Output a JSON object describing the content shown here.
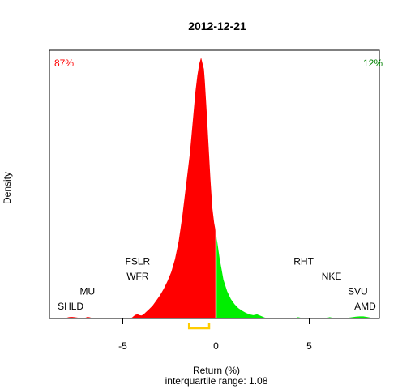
{
  "chart_data": {
    "type": "area",
    "title": "2012-12-21",
    "xlabel": "Return (%)",
    "ylabel": "Density",
    "subtitle": "interquartile range: 1.08",
    "xlim": [
      -9.3,
      9.3
    ],
    "x_ticks": [
      -5,
      0,
      5
    ],
    "x_tick_labels": [
      "-5",
      "0",
      "5"
    ],
    "pct_negative": "87%",
    "pct_positive": "12%",
    "colors": {
      "negative": "#ff0000",
      "positive": "#00ee00",
      "iqr": "#ffcc00",
      "zero_line": "#ffffff",
      "baseline": "#bebebe"
    },
    "density": {
      "x": [
        -8.4,
        -8.2,
        -8.0,
        -7.9,
        -7.8,
        -7.7,
        -7.6,
        -7.4,
        -7.2,
        -7.0,
        -6.9,
        -6.8,
        -6.7,
        -6.6,
        -6.4,
        -6.2,
        -5.5,
        -5.0,
        -4.6,
        -4.5,
        -4.4,
        -4.3,
        -4.2,
        -4.1,
        -4.0,
        -3.9,
        -3.8,
        -3.6,
        -3.4,
        -3.2,
        -3.0,
        -2.8,
        -2.6,
        -2.4,
        -2.2,
        -2.0,
        -1.8,
        -1.6,
        -1.4,
        -1.3,
        -1.2,
        -1.1,
        -1.0,
        -0.9,
        -0.8,
        -0.7,
        -0.65,
        -0.6,
        -0.5,
        -0.4,
        -0.3,
        -0.2,
        -0.1,
        0.0,
        0.1,
        0.2,
        0.3,
        0.4,
        0.6,
        0.8,
        1.0,
        1.2,
        1.4,
        1.6,
        1.8,
        2.0,
        2.2,
        2.4,
        2.6,
        2.8,
        3.0,
        3.5,
        4.0,
        4.2,
        4.4,
        4.6,
        4.8,
        5.0,
        5.5,
        5.9,
        6.1,
        6.3,
        6.5,
        6.8,
        7.2,
        7.5,
        7.7,
        7.9,
        8.1,
        8.3,
        8.6,
        9.3
      ],
      "y": [
        0,
        0.1,
        0.3,
        0.5,
        0.6,
        0.6,
        0.5,
        0.3,
        0.2,
        0.3,
        0.6,
        0.5,
        0.3,
        0.1,
        0,
        0,
        0,
        0,
        0.1,
        0.4,
        1.0,
        1.5,
        1.6,
        1.3,
        1.2,
        1.5,
        2.2,
        3.5,
        5.0,
        7.0,
        9.0,
        11.5,
        14.5,
        18.0,
        23.0,
        30.0,
        40.0,
        52.0,
        64.0,
        72.0,
        80.0,
        88.0,
        94.0,
        98.5,
        101.0,
        98.0,
        96.5,
        92.0,
        80.0,
        67.0,
        54.0,
        43.0,
        37.0,
        33.0,
        28.0,
        23.0,
        19.0,
        15.0,
        10.5,
        7.5,
        5.5,
        4.0,
        3.0,
        2.2,
        1.6,
        1.3,
        1.6,
        1.0,
        0.4,
        0.1,
        0,
        0,
        0,
        0.1,
        0.5,
        0.2,
        0,
        0,
        0,
        0.2,
        0.5,
        0.2,
        0,
        0.1,
        0.4,
        0.7,
        0.8,
        0.8,
        0.6,
        0.3,
        0.1,
        0
      ]
    },
    "iqr": [
      -1.45,
      -0.37
    ],
    "annotations": [
      {
        "text": "SHLD",
        "x": -7.8,
        "row": 1
      },
      {
        "text": "MU",
        "x": -6.9,
        "row": 2
      },
      {
        "text": "WFR",
        "x": -4.2,
        "row": 3
      },
      {
        "text": "FSLR",
        "x": -4.2,
        "row": 4
      },
      {
        "text": "RHT",
        "x": 4.7,
        "row": 4
      },
      {
        "text": "NKE",
        "x": 6.2,
        "row": 3
      },
      {
        "text": "SVU",
        "x": 7.6,
        "row": 2
      },
      {
        "text": "AMD",
        "x": 8.0,
        "row": 1
      }
    ]
  }
}
